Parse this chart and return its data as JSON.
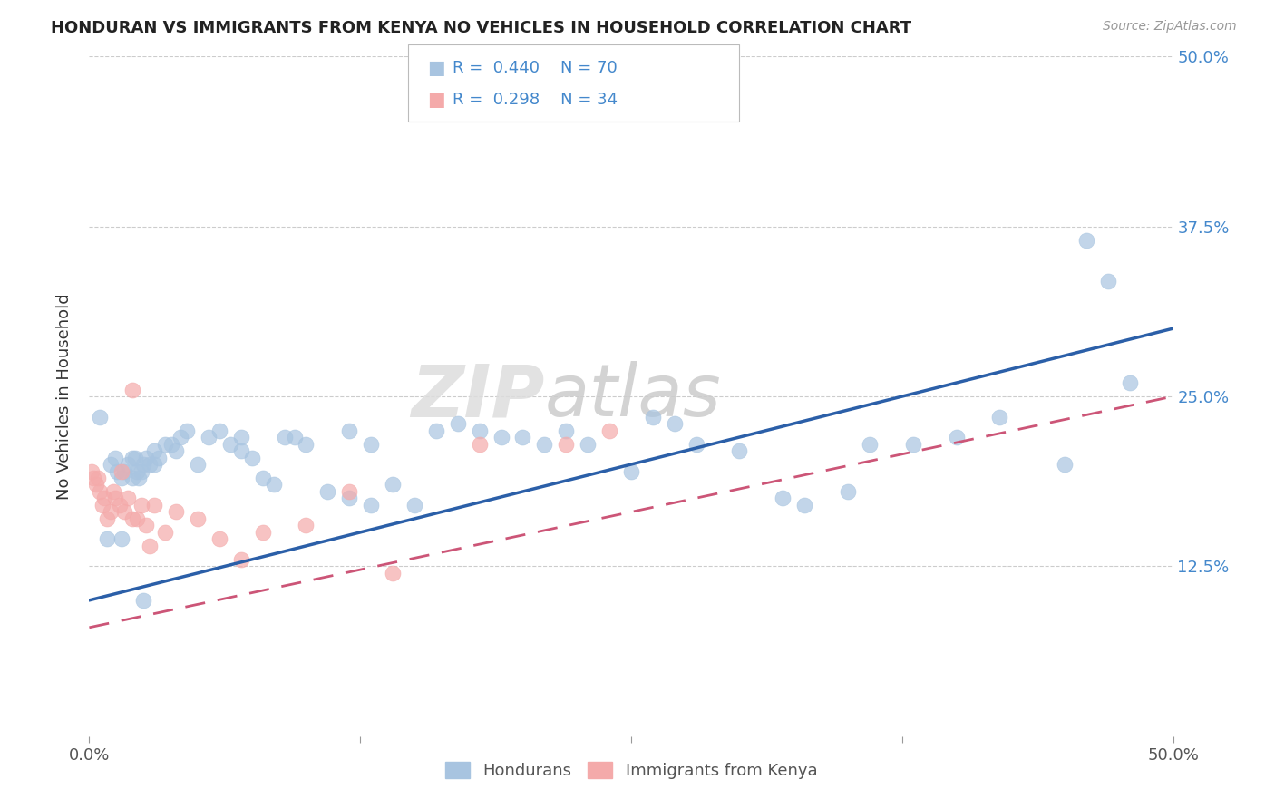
{
  "title": "HONDURAN VS IMMIGRANTS FROM KENYA NO VEHICLES IN HOUSEHOLD CORRELATION CHART",
  "source": "Source: ZipAtlas.com",
  "ylabel": "No Vehicles in Household",
  "legend1_r": "0.440",
  "legend1_n": "70",
  "legend2_r": "0.298",
  "legend2_n": "34",
  "blue_color": "#A8C4E0",
  "pink_color": "#F4AAAA",
  "blue_line_color": "#2B5FA8",
  "pink_line_color": "#CC5577",
  "watermark_zip": "ZIP",
  "watermark_atlas": "atlas",
  "blue_x": [
    0.5,
    0.8,
    1.0,
    1.2,
    1.3,
    1.5,
    1.6,
    1.8,
    2.0,
    2.1,
    2.2,
    2.3,
    2.4,
    2.5,
    2.6,
    2.8,
    3.0,
    3.2,
    3.5,
    3.8,
    4.0,
    4.2,
    4.5,
    5.0,
    5.5,
    6.0,
    6.5,
    7.0,
    7.5,
    8.0,
    8.5,
    9.0,
    9.5,
    10.0,
    11.0,
    12.0,
    13.0,
    14.0,
    15.0,
    16.0,
    17.0,
    18.0,
    19.0,
    20.0,
    21.0,
    22.0,
    23.0,
    25.0,
    26.0,
    27.0,
    28.0,
    30.0,
    32.0,
    33.0,
    35.0,
    36.0,
    38.0,
    40.0,
    42.0,
    45.0,
    46.0,
    47.0,
    48.0,
    12.0,
    13.0,
    7.0,
    2.0,
    3.0,
    1.5,
    2.5
  ],
  "blue_y": [
    23.5,
    14.5,
    20.0,
    20.5,
    19.5,
    19.0,
    19.5,
    20.0,
    19.0,
    20.5,
    19.5,
    19.0,
    19.5,
    20.0,
    20.5,
    20.0,
    21.0,
    20.5,
    21.5,
    21.5,
    21.0,
    22.0,
    22.5,
    20.0,
    22.0,
    22.5,
    21.5,
    21.0,
    20.5,
    19.0,
    18.5,
    22.0,
    22.0,
    21.5,
    18.0,
    17.5,
    17.0,
    18.5,
    17.0,
    22.5,
    23.0,
    22.5,
    22.0,
    22.0,
    21.5,
    22.5,
    21.5,
    19.5,
    23.5,
    23.0,
    21.5,
    21.0,
    17.5,
    17.0,
    18.0,
    21.5,
    21.5,
    22.0,
    23.5,
    20.0,
    36.5,
    33.5,
    26.0,
    22.5,
    21.5,
    22.0,
    20.5,
    20.0,
    14.5,
    10.0
  ],
  "pink_x": [
    0.1,
    0.2,
    0.3,
    0.4,
    0.5,
    0.6,
    0.7,
    0.8,
    1.0,
    1.1,
    1.2,
    1.4,
    1.5,
    1.6,
    1.8,
    2.0,
    2.2,
    2.4,
    2.6,
    2.8,
    3.0,
    3.5,
    4.0,
    5.0,
    6.0,
    7.0,
    8.0,
    10.0,
    12.0,
    14.0,
    18.0,
    22.0,
    24.0,
    2.0
  ],
  "pink_y": [
    19.5,
    19.0,
    18.5,
    19.0,
    18.0,
    17.0,
    17.5,
    16.0,
    16.5,
    18.0,
    17.5,
    17.0,
    19.5,
    16.5,
    17.5,
    16.0,
    16.0,
    17.0,
    15.5,
    14.0,
    17.0,
    15.0,
    16.5,
    16.0,
    14.5,
    13.0,
    15.0,
    15.5,
    18.0,
    12.0,
    21.5,
    21.5,
    22.5,
    25.5
  ]
}
